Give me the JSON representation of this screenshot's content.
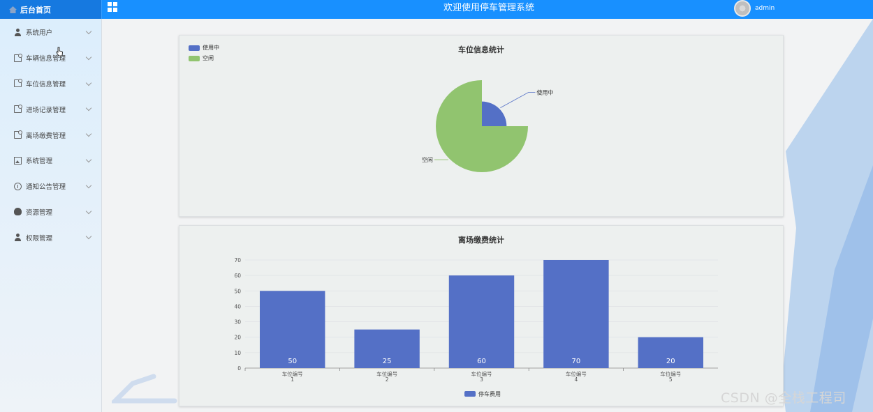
{
  "header": {
    "brand_label": "后台首页",
    "title": "欢迎使用停车管理系统",
    "username": "admin",
    "accent_color": "#1890ff"
  },
  "sidebar": {
    "items": [
      {
        "label": "系统用户",
        "icon": "user-icon"
      },
      {
        "label": "车辆信息管理",
        "icon": "document-icon"
      },
      {
        "label": "车位信息管理",
        "icon": "document-icon"
      },
      {
        "label": "进场记录管理",
        "icon": "document-icon"
      },
      {
        "label": "离场缴费管理",
        "icon": "document-icon"
      },
      {
        "label": "系统管理",
        "icon": "picture-icon"
      },
      {
        "label": "通知公告管理",
        "icon": "info-icon"
      },
      {
        "label": "资源管理",
        "icon": "bulb-icon"
      },
      {
        "label": "权限管理",
        "icon": "user-icon"
      }
    ]
  },
  "chart_data": [
    {
      "type": "pie",
      "title": "车位信息统计",
      "legend_position": "top-left",
      "slices": [
        {
          "name": "使用中",
          "value": 1,
          "color": "#5470c6"
        },
        {
          "name": "空闲",
          "value": 3,
          "color": "#91c46f"
        }
      ]
    },
    {
      "type": "bar",
      "title": "离场缴费统计",
      "categories": [
        "车位编号\n1",
        "车位编号\n2",
        "车位编号\n3",
        "车位编号\n4",
        "车位编号\n5"
      ],
      "series": [
        {
          "name": "停车费用",
          "values": [
            50,
            25,
            60,
            70,
            20
          ],
          "color": "#5470c6"
        }
      ],
      "ylim": [
        0,
        70
      ],
      "yticks": [
        0,
        10,
        20,
        30,
        40,
        50,
        60,
        70
      ],
      "grid": true,
      "legend_position": "bottom-center"
    }
  ],
  "watermark": "CSDN @全栈工程司"
}
